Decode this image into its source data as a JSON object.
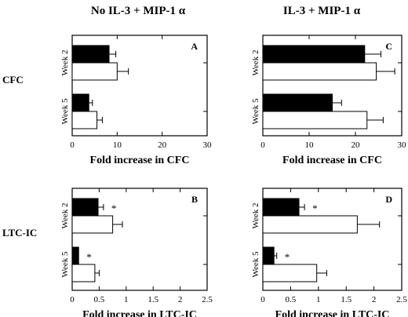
{
  "column_titles": [
    "No IL-3 + MIP-1  α",
    "IL-3 + MIP-1  α"
  ],
  "row_labels": [
    "CFC",
    "LTC-IC"
  ],
  "colors": {
    "filled": "#000000",
    "open": "#ffffff",
    "stroke": "#000000"
  },
  "chart_data": [
    {
      "type": "bar",
      "orientation": "horizontal",
      "panel": "A",
      "categories": [
        "Week 2",
        "Week 5"
      ],
      "series": [
        {
          "fill": "filled",
          "values": [
            8.2,
            3.7
          ],
          "errors": [
            1.5,
            0.8
          ]
        },
        {
          "fill": "open",
          "values": [
            10.0,
            5.5
          ],
          "errors": [
            2.5,
            1.2
          ]
        }
      ],
      "xlim": [
        0,
        30
      ],
      "ticks": [
        "0",
        "10",
        "20",
        "30"
      ],
      "tick_values": [
        0,
        10,
        20,
        30
      ],
      "xlabel": "Fold increase in CFC",
      "significance": []
    },
    {
      "type": "bar",
      "orientation": "horizontal",
      "panel": "C",
      "categories": [
        "Week 2",
        "Week 5"
      ],
      "series": [
        {
          "fill": "filled",
          "values": [
            22.0,
            15.0
          ],
          "errors": [
            3.5,
            2.0
          ]
        },
        {
          "fill": "open",
          "values": [
            24.5,
            22.5
          ],
          "errors": [
            4.0,
            3.5
          ]
        }
      ],
      "xlim": [
        0,
        30
      ],
      "ticks": [
        "0",
        "10",
        "20",
        "30"
      ],
      "tick_values": [
        0,
        10,
        20,
        30
      ],
      "xlabel": "Fold increase in CFC",
      "significance": []
    },
    {
      "type": "bar",
      "orientation": "horizontal",
      "panel": "B",
      "categories": [
        "Week 2",
        "Week 5"
      ],
      "series": [
        {
          "fill": "filled",
          "values": [
            0.48,
            0.12
          ],
          "errors": [
            0.1,
            0.0
          ]
        },
        {
          "fill": "open",
          "values": [
            0.75,
            0.42
          ],
          "errors": [
            0.18,
            0.08
          ]
        }
      ],
      "xlim": [
        0,
        2.5
      ],
      "ticks": [
        "0",
        "0.5",
        "1",
        "1.5",
        "2",
        "2.5"
      ],
      "tick_values": [
        0,
        0.5,
        1,
        1.5,
        2,
        2.5
      ],
      "xlabel": "Fold increase in LTC-IC",
      "significance": [
        "*",
        "*"
      ]
    },
    {
      "type": "bar",
      "orientation": "horizontal",
      "panel": "D",
      "categories": [
        "Week 2",
        "Week 5"
      ],
      "series": [
        {
          "fill": "filled",
          "values": [
            0.65,
            0.2
          ],
          "errors": [
            0.1,
            0.05
          ]
        },
        {
          "fill": "open",
          "values": [
            1.7,
            0.97
          ],
          "errors": [
            0.4,
            0.18
          ]
        }
      ],
      "xlim": [
        0,
        2.5
      ],
      "ticks": [
        "0",
        "0.5",
        "1",
        "1.5",
        "2",
        "2.5"
      ],
      "tick_values": [
        0,
        0.5,
        1,
        1.5,
        2,
        2.5
      ],
      "xlabel": "Fold increase in LTC-IC",
      "significance": [
        "*",
        "*"
      ]
    }
  ]
}
